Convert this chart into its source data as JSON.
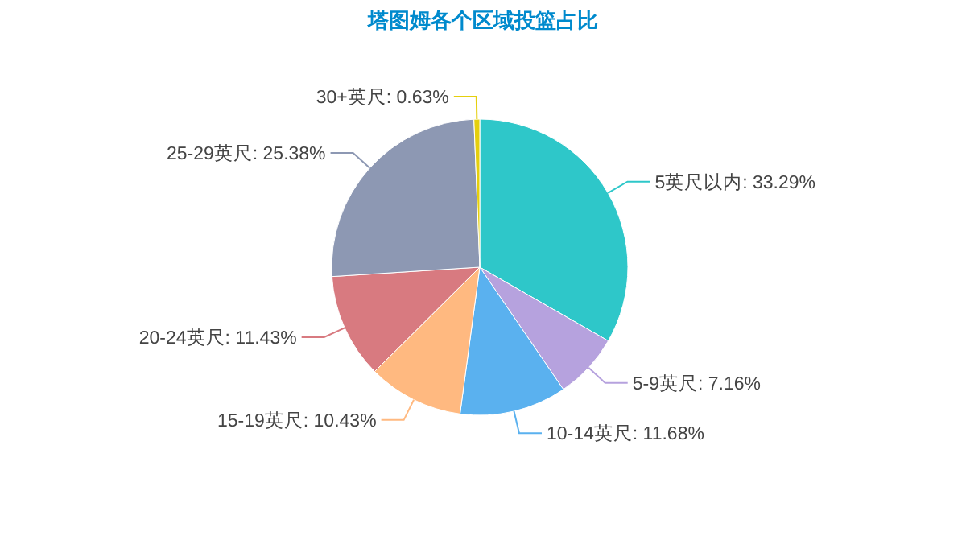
{
  "chart_data": {
    "type": "pie",
    "title": "塔图姆各个区域投篮占比",
    "categories": [
      "5英尺以内",
      "5-9英尺",
      "10-14英尺",
      "15-19英尺",
      "20-24英尺",
      "25-29英尺",
      "30+英尺"
    ],
    "values": [
      33.29,
      7.16,
      11.68,
      10.43,
      11.43,
      25.38,
      0.63
    ],
    "value_labels": [
      "33.29%",
      "7.16%",
      "11.68%",
      "10.43%",
      "11.43%",
      "25.38%",
      "0.63%"
    ],
    "colors": [
      "#2ec7c9",
      "#b6a2de",
      "#5ab1ef",
      "#ffb980",
      "#d87a80",
      "#8d98b3",
      "#e5cf0d"
    ]
  }
}
